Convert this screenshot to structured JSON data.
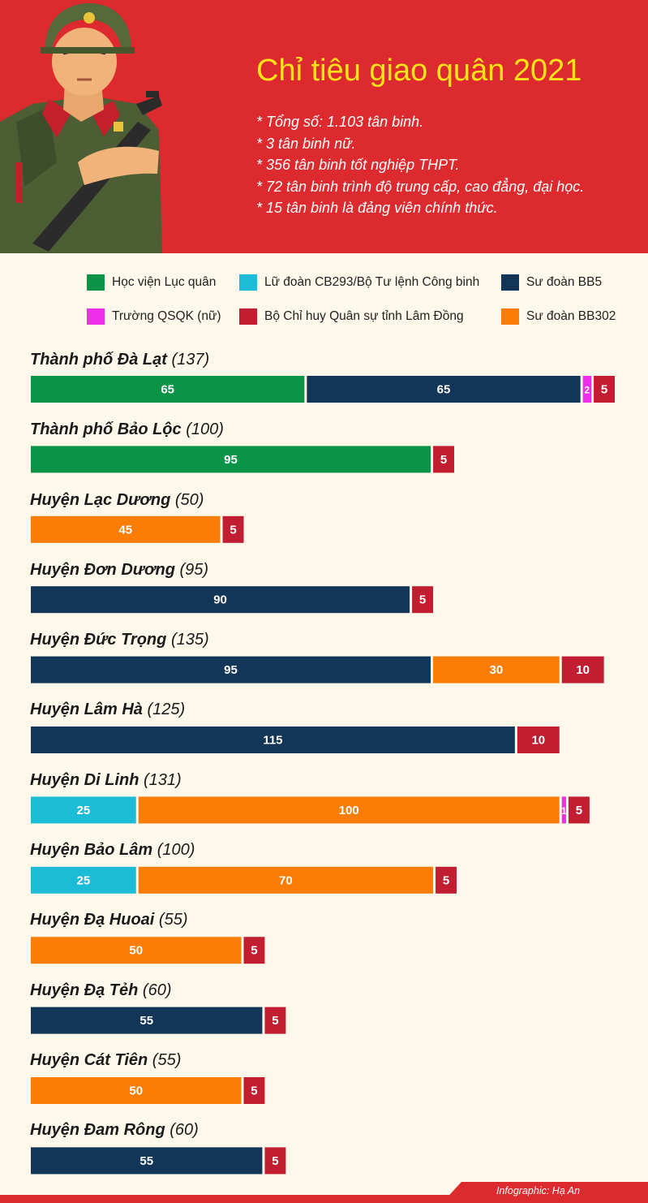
{
  "header": {
    "title": "Chỉ tiêu giao quân 2021",
    "facts": [
      "* Tổng số: 1.103 tân binh.",
      "* 3 tân binh nữ.",
      "* 356 tân binh tốt nghiệp THPT.",
      "* 72 tân binh trình độ trung cấp, cao đẳng, đại học.",
      "* 15 tân binh là đảng viên chính thức."
    ]
  },
  "legend": [
    {
      "label": "Học viện Lục quân",
      "color": "#0b9448"
    },
    {
      "label": "Lữ đoàn CB293/Bộ Tư lệnh Công binh",
      "color": "#1dbcd6"
    },
    {
      "label": "Sư đoàn BB5",
      "color": "#133558"
    },
    {
      "label": "Trường QSQK (nữ)",
      "color": "#ee2ee8"
    },
    {
      "label": "Bộ Chỉ huy Quân sự tỉnh Lâm Đồng",
      "color": "#c11f31"
    },
    {
      "label": "Sư đoàn BB302",
      "color": "#fc7d06"
    }
  ],
  "chart_data": {
    "type": "bar",
    "orientation": "horizontal",
    "stacked": true,
    "series_names": [
      "Học viện Lục quân",
      "Lữ đoàn CB293/Bộ Tư lệnh Công binh",
      "Sư đoàn BB5",
      "Trường QSQK (nữ)",
      "Bộ Chỉ huy Quân sự tỉnh Lâm Đồng",
      "Sư đoàn BB302"
    ],
    "groups": [
      {
        "name": "Thành phố Đà Lạt",
        "total_label": "(137)",
        "segments": [
          {
            "series": "Học viện Lục quân",
            "value": 65
          },
          {
            "series": "Sư đoàn BB5",
            "value": 65
          },
          {
            "series": "Trường QSQK (nữ)",
            "value": 2
          },
          {
            "series": "Bộ Chỉ huy Quân sự tỉnh Lâm Đồng",
            "value": 5
          }
        ]
      },
      {
        "name": "Thành phố Bảo Lộc",
        "total_label": "(100)",
        "segments": [
          {
            "series": "Học viện Lục quân",
            "value": 95
          },
          {
            "series": "Bộ Chỉ huy Quân sự tỉnh Lâm Đồng",
            "value": 5
          }
        ]
      },
      {
        "name": "Huyện Lạc Dương",
        "total_label": "(50)",
        "segments": [
          {
            "series": "Sư đoàn BB302",
            "value": 45
          },
          {
            "series": "Bộ Chỉ huy Quân sự tỉnh Lâm Đồng",
            "value": 5
          }
        ]
      },
      {
        "name": "Huyện Đơn Dương",
        "total_label": "(95)",
        "segments": [
          {
            "series": "Sư đoàn BB5",
            "value": 90
          },
          {
            "series": "Bộ Chỉ huy Quân sự tỉnh Lâm Đồng",
            "value": 5
          }
        ]
      },
      {
        "name": "Huyện Đức Trọng",
        "total_label": "(135)",
        "segments": [
          {
            "series": "Sư đoàn BB5",
            "value": 95
          },
          {
            "series": "Sư đoàn BB302",
            "value": 30
          },
          {
            "series": "Bộ Chỉ huy Quân sự tỉnh Lâm Đồng",
            "value": 10
          }
        ]
      },
      {
        "name": "Huyện Lâm Hà",
        "total_label": "(125)",
        "segments": [
          {
            "series": "Sư đoàn BB5",
            "value": 115
          },
          {
            "series": "Bộ Chỉ huy Quân sự tỉnh Lâm Đồng",
            "value": 10
          }
        ]
      },
      {
        "name": "Huyện Di Linh",
        "total_label": "(131)",
        "segments": [
          {
            "series": "Lữ đoàn CB293/Bộ Tư lệnh Công binh",
            "value": 25
          },
          {
            "series": "Sư đoàn BB302",
            "value": 100
          },
          {
            "series": "Trường QSQK (nữ)",
            "value": 1
          },
          {
            "series": "Bộ Chỉ huy Quân sự tỉnh Lâm Đồng",
            "value": 5
          }
        ]
      },
      {
        "name": "Huyện Bảo Lâm",
        "total_label": "(100)",
        "segments": [
          {
            "series": "Lữ đoàn CB293/Bộ Tư lệnh Công binh",
            "value": 25
          },
          {
            "series": "Sư đoàn BB302",
            "value": 70
          },
          {
            "series": "Bộ Chỉ huy Quân sự tỉnh Lâm Đồng",
            "value": 5
          }
        ]
      },
      {
        "name": "Huyện Đạ Huoai",
        "total_label": "(55)",
        "segments": [
          {
            "series": "Sư đoàn BB302",
            "value": 50
          },
          {
            "series": "Bộ Chỉ huy Quân sự tỉnh Lâm Đồng",
            "value": 5
          }
        ]
      },
      {
        "name": "Huyện Đạ Tẻh",
        "total_label": "(60)",
        "segments": [
          {
            "series": "Sư đoàn BB5",
            "value": 55
          },
          {
            "series": "Bộ Chỉ huy Quân sự tỉnh Lâm Đồng",
            "value": 5
          }
        ]
      },
      {
        "name": "Huyện Cát Tiên",
        "total_label": "(55)",
        "segments": [
          {
            "series": "Sư đoàn BB302",
            "value": 50
          },
          {
            "series": "Bộ Chỉ huy Quân sự tỉnh Lâm Đồng",
            "value": 5
          }
        ]
      },
      {
        "name": "Huyện Đam Rông",
        "total_label": "(60)",
        "segments": [
          {
            "series": "Sư đoàn BB5",
            "value": 55
          },
          {
            "series": "Bộ Chỉ huy Quân sự tỉnh Lâm Đồng",
            "value": 5
          }
        ]
      }
    ]
  },
  "credit": "Infographic: Hạ An"
}
